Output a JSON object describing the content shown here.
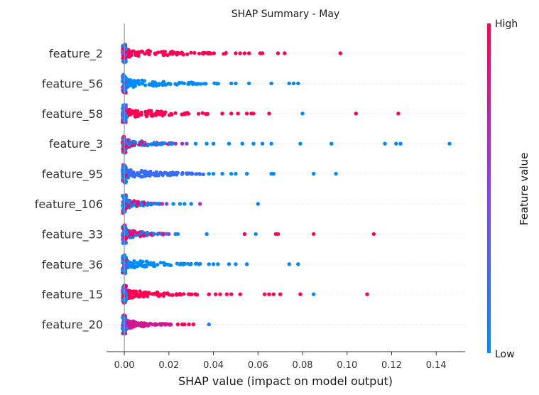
{
  "chart_data": {
    "type": "scatter",
    "title": "SHAP Summary - May",
    "xlabel": "SHAP value (impact on model output)",
    "xlim": [
      -0.008,
      0.153
    ],
    "xticks": [
      "0.00",
      "0.02",
      "0.04",
      "0.06",
      "0.08",
      "0.10",
      "0.12",
      "0.14"
    ],
    "xtick_values": [
      0.0,
      0.02,
      0.04,
      0.06,
      0.08,
      0.1,
      0.12,
      0.14
    ],
    "colorbar": {
      "title": "Feature value",
      "high_label": "High",
      "low_label": "Low",
      "low_color": "#008bfb",
      "high_color": "#ff0052"
    },
    "features": [
      {
        "name": "feature_2",
        "points": [
          [
            0.05,
            1
          ],
          [
            0.052,
            1
          ],
          [
            0.054,
            1
          ],
          [
            0.056,
            1
          ],
          [
            0.061,
            1
          ],
          [
            0.062,
            1
          ],
          [
            0.069,
            1
          ],
          [
            0.072,
            1
          ],
          [
            0.097,
            1
          ]
        ],
        "base": {
          "end": 0.046,
          "color": 1
        }
      },
      {
        "name": "feature_56",
        "points": [
          [
            0.048,
            0
          ],
          [
            0.05,
            0
          ],
          [
            0.056,
            0
          ],
          [
            0.066,
            0
          ],
          [
            0.074,
            0
          ],
          [
            0.076,
            0
          ],
          [
            0.078,
            0
          ]
        ],
        "base": {
          "end": 0.045,
          "color": 0
        }
      },
      {
        "name": "feature_58",
        "points": [
          [
            0.044,
            1
          ],
          [
            0.048,
            1
          ],
          [
            0.051,
            1
          ],
          [
            0.055,
            1
          ],
          [
            0.057,
            1
          ],
          [
            0.058,
            1
          ],
          [
            0.065,
            1
          ],
          [
            0.08,
            0
          ],
          [
            0.104,
            1
          ],
          [
            0.123,
            1
          ]
        ],
        "base": {
          "end": 0.04,
          "color": 1
        }
      },
      {
        "name": "feature_3",
        "points": [
          [
            0.023,
            0.6
          ],
          [
            0.026,
            0.6
          ],
          [
            0.028,
            0.3
          ],
          [
            0.032,
            0
          ],
          [
            0.037,
            0
          ],
          [
            0.04,
            0
          ],
          [
            0.047,
            0
          ],
          [
            0.053,
            0
          ],
          [
            0.058,
            0
          ],
          [
            0.062,
            0
          ],
          [
            0.066,
            0
          ],
          [
            0.079,
            0
          ],
          [
            0.093,
            0
          ],
          [
            0.117,
            0
          ],
          [
            0.122,
            0
          ],
          [
            0.124,
            0
          ],
          [
            0.146,
            0
          ]
        ],
        "base": {
          "end": 0.022,
          "color": 0.45
        }
      },
      {
        "name": "feature_95",
        "points": [
          [
            0.038,
            0
          ],
          [
            0.04,
            0
          ],
          [
            0.044,
            0
          ],
          [
            0.048,
            0
          ],
          [
            0.05,
            0
          ],
          [
            0.055,
            0
          ],
          [
            0.066,
            0
          ],
          [
            0.067,
            0
          ],
          [
            0.085,
            0
          ],
          [
            0.095,
            0
          ]
        ],
        "base": {
          "end": 0.037,
          "color": 0.2
        }
      },
      {
        "name": "feature_106",
        "points": [
          [
            0.017,
            0.7
          ],
          [
            0.019,
            0.4
          ],
          [
            0.022,
            0
          ],
          [
            0.025,
            0
          ],
          [
            0.027,
            0
          ],
          [
            0.03,
            0
          ],
          [
            0.034,
            0.6
          ],
          [
            0.06,
            0
          ]
        ],
        "base": {
          "end": 0.016,
          "color": 0.45
        }
      },
      {
        "name": "feature_33",
        "points": [
          [
            0.02,
            0.5
          ],
          [
            0.023,
            0
          ],
          [
            0.024,
            0
          ],
          [
            0.037,
            0
          ],
          [
            0.054,
            1
          ],
          [
            0.059,
            0
          ],
          [
            0.068,
            1
          ],
          [
            0.069,
            1
          ],
          [
            0.085,
            1
          ],
          [
            0.112,
            1
          ]
        ],
        "base": {
          "end": 0.019,
          "color": 0.45
        }
      },
      {
        "name": "feature_36",
        "points": [
          [
            0.038,
            0
          ],
          [
            0.04,
            0
          ],
          [
            0.042,
            0
          ],
          [
            0.047,
            0
          ],
          [
            0.05,
            0
          ],
          [
            0.055,
            0
          ],
          [
            0.074,
            0
          ],
          [
            0.078,
            0
          ]
        ],
        "base": {
          "end": 0.036,
          "color": 0
        }
      },
      {
        "name": "feature_15",
        "points": [
          [
            0.038,
            1
          ],
          [
            0.041,
            1
          ],
          [
            0.043,
            1
          ],
          [
            0.046,
            1
          ],
          [
            0.048,
            1
          ],
          [
            0.052,
            1
          ],
          [
            0.063,
            1
          ],
          [
            0.065,
            1
          ],
          [
            0.067,
            1
          ],
          [
            0.07,
            1
          ],
          [
            0.079,
            1
          ],
          [
            0.085,
            0
          ],
          [
            0.109,
            1
          ]
        ],
        "base": {
          "end": 0.033,
          "color": 1
        }
      },
      {
        "name": "feature_20",
        "points": [
          [
            0.024,
            1
          ],
          [
            0.026,
            1
          ],
          [
            0.027,
            1
          ],
          [
            0.029,
            1
          ],
          [
            0.031,
            1
          ],
          [
            0.038,
            0.15
          ]
        ],
        "base": {
          "end": 0.021,
          "color": 0.8
        }
      }
    ]
  }
}
